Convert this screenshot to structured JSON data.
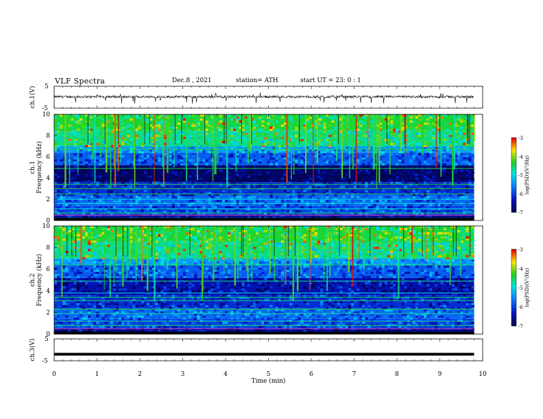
{
  "header": {
    "title": "VLF  Spectra",
    "date": "Dec.8  , 2021",
    "station": "station= ATH",
    "start": "start  UT  =    23: 0   : 1"
  },
  "chart_data": [
    {
      "type": "line",
      "panel": "ch1-waveform",
      "ylabel": "ch.1(V)",
      "ylim": [
        -5,
        5
      ],
      "yticks": [
        "5",
        "-5"
      ],
      "x_range_min": [
        0,
        9.8
      ],
      "baseline_V": 0.2,
      "description_values": "noisy waveform around ~0 V with sparse negative spikes to about -2 V"
    },
    {
      "type": "heatmap",
      "panel": "ch1-spectrogram",
      "ylabel": "ch.1\nFrequency  (kHz)",
      "ylim": [
        0,
        10
      ],
      "yticks": [
        "0",
        "2",
        "4",
        "6",
        "8",
        "10"
      ],
      "colorbar": {
        "label": "log(PSD)(V²/Hz)",
        "range": [
          -7,
          -3
        ],
        "ticks": [
          "-3",
          "-4",
          "-5",
          "-6",
          "-7"
        ]
      }
    },
    {
      "type": "heatmap",
      "panel": "ch2-spectrogram",
      "ylabel": "ch.2\nFrequency  (kHz)",
      "ylim": [
        0,
        10
      ],
      "yticks": [
        "0",
        "2",
        "4",
        "6",
        "8",
        "10"
      ],
      "colorbar": {
        "label": "log(PSD)(V²/Hz)",
        "range": [
          -7,
          -3
        ],
        "ticks": [
          "-3",
          "-4",
          "-5",
          "-6",
          "-7"
        ]
      }
    },
    {
      "type": "line",
      "panel": "ch3-waveform",
      "ylabel": "ch.3(V)",
      "ylim": [
        -5,
        5
      ],
      "yticks": [
        "5",
        "-5"
      ],
      "baseline_V": -2.0
    }
  ],
  "xaxis": {
    "label": "Time  (min)",
    "ticks": [
      "0",
      "1",
      "2",
      "3",
      "4",
      "5",
      "6",
      "7",
      "8",
      "9",
      "10"
    ],
    "range": [
      0,
      10
    ],
    "data_end": 9.8
  },
  "colors": {
    "deep": "#00004a",
    "blue": "#0016c8",
    "lightblue": "#0a80ff",
    "cyan": "#00e6e6",
    "green": "#1ed21e",
    "yellow": "#ffe600",
    "red": "#e60000"
  }
}
